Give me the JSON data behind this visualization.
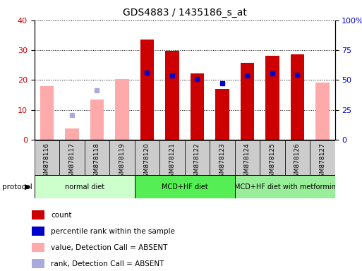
{
  "title": "GDS4883 / 1435186_s_at",
  "samples": [
    "GSM878116",
    "GSM878117",
    "GSM878118",
    "GSM878119",
    "GSM878120",
    "GSM878121",
    "GSM878122",
    "GSM878123",
    "GSM878124",
    "GSM878125",
    "GSM878126",
    "GSM878127"
  ],
  "count_values": [
    null,
    null,
    null,
    null,
    33.5,
    29.8,
    22.3,
    17.0,
    25.7,
    28.0,
    28.7,
    null
  ],
  "percentile_values": [
    null,
    null,
    null,
    null,
    22.5,
    21.5,
    20.3,
    19.0,
    21.5,
    22.3,
    21.8,
    null
  ],
  "absent_value_values": [
    18.0,
    3.8,
    13.5,
    20.2,
    null,
    null,
    null,
    null,
    null,
    null,
    null,
    19.2
  ],
  "absent_rank_values": [
    null,
    8.3,
    16.5,
    null,
    null,
    null,
    null,
    null,
    null,
    null,
    null,
    null
  ],
  "count_color": "#cc0000",
  "percentile_color": "#0000cc",
  "absent_value_color": "#ffaaaa",
  "absent_rank_color": "#aaaadd",
  "ylim_left": [
    0,
    40
  ],
  "ylim_right": [
    0,
    100
  ],
  "yticks_left": [
    0,
    10,
    20,
    30,
    40
  ],
  "yticks_right": [
    0,
    25,
    50,
    75,
    100
  ],
  "ytick_labels_right": [
    "0",
    "25",
    "50",
    "75",
    "100%"
  ],
  "protocol_groups": [
    {
      "label": "normal diet",
      "start": 0,
      "end": 3,
      "color": "#ccffcc"
    },
    {
      "label": "MCD+HF diet",
      "start": 4,
      "end": 7,
      "color": "#55ee55"
    },
    {
      "label": "MCD+HF diet with metformin",
      "start": 8,
      "end": 11,
      "color": "#99ee99"
    }
  ],
  "legend_items": [
    {
      "label": "count",
      "color": "#cc0000"
    },
    {
      "label": "percentile rank within the sample",
      "color": "#0000cc"
    },
    {
      "label": "value, Detection Call = ABSENT",
      "color": "#ffaaaa"
    },
    {
      "label": "rank, Detection Call = ABSENT",
      "color": "#aaaadd"
    }
  ],
  "bar_width": 0.55,
  "background_color": "#ffffff",
  "tick_label_color_left": "#cc0000",
  "tick_label_color_right": "#0000cc",
  "xtick_box_color": "#cccccc"
}
